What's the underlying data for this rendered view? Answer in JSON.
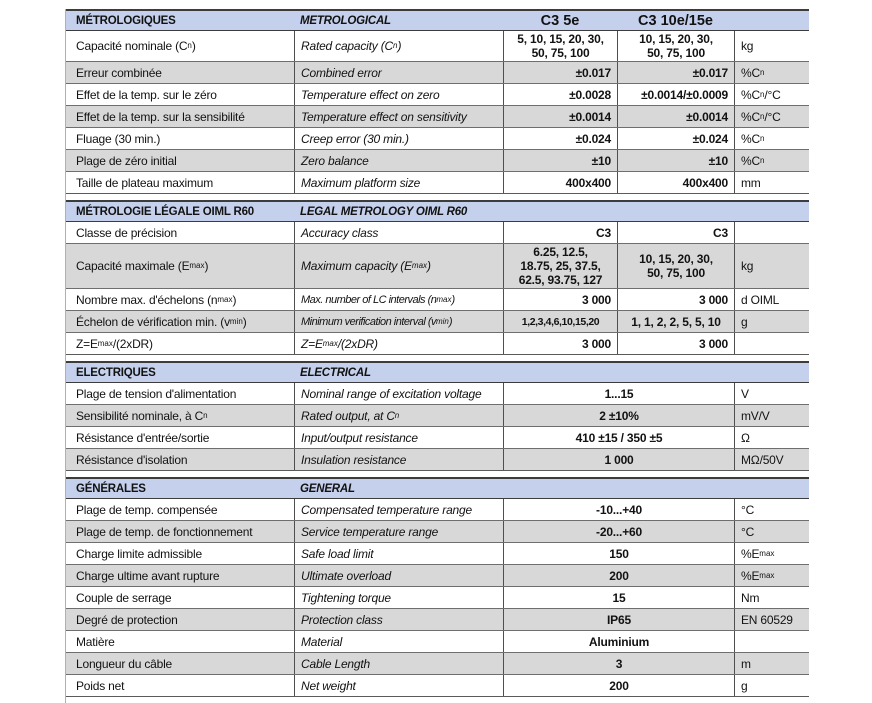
{
  "doc": {
    "type": "load-cell specification datasheet",
    "language_columns": [
      "Français",
      "English"
    ]
  },
  "colors": {
    "section_header_bg": "#c5d1ec",
    "alt_row_bg": "#d8d8d8",
    "border_dark": "#3c3c3c",
    "border_mid": "#4f4f4f",
    "text": "#121212"
  },
  "table": {
    "sections": [
      {
        "header": {
          "fr": "MÉTROLOGIQUES",
          "en": "METROLOGICAL",
          "model1": "C3 5e",
          "model2": "C3 10e/15e",
          "unit": ""
        },
        "rows": [
          {
            "fr": "Capacité nominale (C~n~)",
            "en": "Rated capacity (C~n~)",
            "v1": "5, 10, 15, 20, 30,\n50, 75, 100",
            "v2": "10, 15, 20, 30,\n50, 75, 100",
            "unit": "kg",
            "align": "center"
          },
          {
            "fr": "Erreur combinée",
            "en": "Combined error",
            "v1": "±0.017",
            "v2": "±0.017",
            "unit": "%C~n~"
          },
          {
            "fr": "Effet de la temp. sur le zéro",
            "en": "Temperature effect on zero",
            "v1": "±0.0028",
            "v2": "±0.0014/±0.0009",
            "unit": "%C~n~/°C"
          },
          {
            "fr": "Effet de la temp. sur la sensibilité",
            "en": "Temperature effect on sensitivity",
            "v1": "±0.0014",
            "v2": "±0.0014",
            "unit": "%C~n~/°C"
          },
          {
            "fr": "Fluage (30 min.)",
            "en": "Creep error (30 min.)",
            "v1": "±0.024",
            "v2": "±0.024",
            "unit": "%C~n~"
          },
          {
            "fr": "Plage de zéro initial",
            "en": "Zero balance",
            "v1": "±10",
            "v2": "±10",
            "unit": "%C~n~"
          },
          {
            "fr": "Taille de plateau maximum",
            "en": "Maximum platform size",
            "v1": "400x400",
            "v2": "400x400",
            "unit": "mm"
          }
        ]
      },
      {
        "header": {
          "fr": "MÉTROLOGIE LÉGALE OIML R60",
          "en": "LEGAL METROLOGY OIML R60",
          "model1": "",
          "model2": "",
          "unit": ""
        },
        "rows": [
          {
            "fr": "Classe de précision",
            "en": "Accuracy class",
            "v1": "C3",
            "v2": "C3",
            "unit": ""
          },
          {
            "fr": "Capacité maximale (E~max~)",
            "en": "Maximum capacity (E~max~)",
            "v1": "6.25, 12.5,\n18.75, 25, 37.5,\n62.5, 93.75, 127",
            "v2": "10, 15, 20, 30,\n50, 75, 100",
            "unit": "kg",
            "align": "center"
          },
          {
            "fr": "Nombre max. d'échelons (n~max~)",
            "en": "Max. number of LC intervals (n~max~)",
            "v1": "3 000",
            "v2": "3 000",
            "unit": "d OIML",
            "en_small": true
          },
          {
            "fr": "Échelon de vérification min. (v~min~)",
            "en": "Minimum verification interval (v~min~)",
            "v1": "1,2,3,4,6,10,15,20",
            "v2": "1, 1, 2, 2, 5, 5, 10",
            "unit": "g",
            "align": "center",
            "v1_small": true,
            "en_small": true
          },
          {
            "fr": "Z=E~max~/(2xDR)",
            "en": "Z=E~max~/(2xDR)",
            "v1": "3 000",
            "v2": "3 000",
            "unit": ""
          }
        ]
      },
      {
        "header": {
          "fr": "ELECTRIQUES",
          "en": "ELECTRICAL",
          "model1": "",
          "model2": "",
          "unit": ""
        },
        "rows": [
          {
            "fr": "Plage de tension d'alimentation",
            "en": "Nominal range of excitation voltage",
            "merged": true,
            "v": "1...15",
            "unit": "V"
          },
          {
            "fr": "Sensibilité nominale, à C~n~",
            "en": "Rated output, at C~n~",
            "merged": true,
            "v": "2 ±10%",
            "unit": "mV/V"
          },
          {
            "fr": "Résistance d'entrée/sortie",
            "en": "Input/output resistance",
            "merged": true,
            "v": "410 ±15 / 350 ±5",
            "unit": "Ω"
          },
          {
            "fr": "Résistance d'isolation",
            "en": "Insulation resistance",
            "merged": true,
            "v": "1 000",
            "unit": "MΩ/50V"
          }
        ]
      },
      {
        "header": {
          "fr": "GÉNÉRALES",
          "en": "GENERAL",
          "model1": "",
          "model2": "",
          "unit": ""
        },
        "rows": [
          {
            "fr": "Plage de temp. compensée",
            "en": "Compensated temperature range",
            "merged": true,
            "v": "-10...+40",
            "unit": "°C"
          },
          {
            "fr": "Plage de temp. de fonctionnement",
            "en": "Service temperature range",
            "merged": true,
            "v": "-20...+60",
            "unit": "°C"
          },
          {
            "fr": "Charge limite admissible",
            "en": "Safe load limit",
            "merged": true,
            "v": "150",
            "unit": "%E~max~"
          },
          {
            "fr": "Charge ultime avant rupture",
            "en": "Ultimate overload",
            "merged": true,
            "v": "200",
            "unit": "%E~max~"
          },
          {
            "fr": "Couple de serrage",
            "en": "Tightening torque",
            "merged": true,
            "v": "15",
            "unit": "Nm"
          },
          {
            "fr": "Degré de protection",
            "en": "Protection class",
            "merged": true,
            "v": "IP65",
            "unit": "EN 60529"
          },
          {
            "fr": "Matière",
            "en": "Material",
            "merged": true,
            "v": "Aluminium",
            "unit": ""
          },
          {
            "fr": "Longueur du câble",
            "en": "Cable Length",
            "merged": true,
            "v": "3",
            "unit": "m"
          },
          {
            "fr": "Poids net",
            "en": "Net weight",
            "merged": true,
            "v": "200",
            "unit": "g"
          }
        ]
      }
    ]
  }
}
